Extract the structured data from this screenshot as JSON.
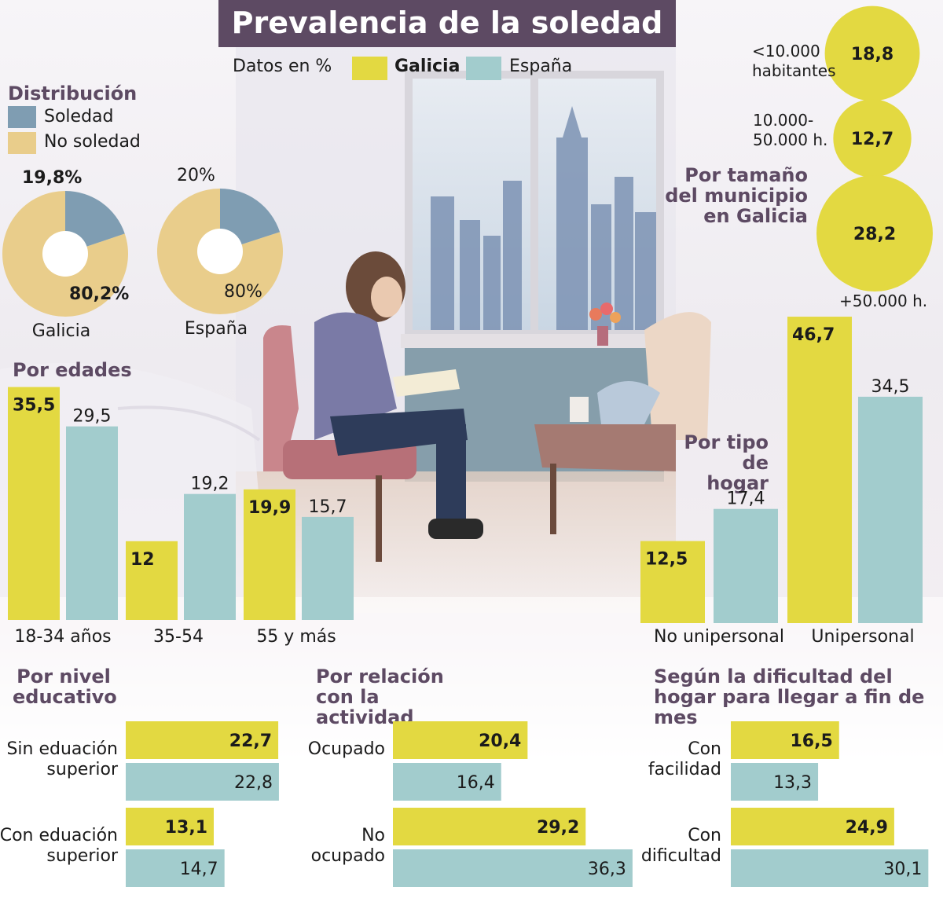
{
  "title": "Prevalencia de la soledad",
  "legend": {
    "units": "Datos en %",
    "galicia": "Galicia",
    "espana": "España",
    "galicia_color": "#e3d941",
    "espana_color": "#a2cccd"
  },
  "distribution": {
    "title": "Distribución",
    "soledad_label": "Soledad",
    "no_soledad_label": "No soledad",
    "soledad_color": "#7f9db2",
    "no_soledad_color": "#e9cd8b"
  },
  "chart_data": [
    {
      "id": "distribucion",
      "type": "pie",
      "title": "Distribución",
      "labels": [
        "Soledad",
        "No soledad"
      ],
      "charts": [
        {
          "name": "Galicia",
          "values": [
            19.8,
            80.2
          ],
          "value_labels": [
            "19,8%",
            "80,2%"
          ]
        },
        {
          "name": "España",
          "values": [
            20,
            80
          ],
          "value_labels": [
            "20%",
            "80%"
          ]
        }
      ]
    },
    {
      "id": "edades",
      "type": "bar",
      "title": "Por edades",
      "categories": [
        "18-34 años",
        "35-54",
        "55 y más"
      ],
      "series": [
        {
          "name": "Galicia",
          "values": [
            35.5,
            12,
            19.9
          ],
          "labels": [
            "35,5",
            "12",
            "19,9"
          ]
        },
        {
          "name": "España",
          "values": [
            29.5,
            19.2,
            15.7
          ],
          "labels": [
            "29,5",
            "19,2",
            "15,7"
          ]
        }
      ]
    },
    {
      "id": "hogar",
      "type": "bar",
      "title": "Por tipo de hogar",
      "categories": [
        "No unipersonal",
        "Unipersonal"
      ],
      "series": [
        {
          "name": "Galicia",
          "values": [
            12.5,
            46.7
          ],
          "labels": [
            "12,5",
            "46,7"
          ]
        },
        {
          "name": "España",
          "values": [
            17.4,
            34.5
          ],
          "labels": [
            "17,4",
            "34,5"
          ]
        }
      ]
    },
    {
      "id": "municipio",
      "type": "bubble",
      "title": "Por tamaño del municipio en Galicia",
      "categories": [
        "<10.000 habitantes",
        "10.000-50.000 h.",
        "+50.000 h."
      ],
      "values": [
        18.8,
        12.7,
        28.2
      ],
      "labels": [
        "18,8",
        "12,7",
        "28,2"
      ]
    },
    {
      "id": "educativo",
      "type": "bar-horizontal",
      "title": "Por nivel educativo",
      "categories": [
        "Sin eduación superior",
        "Con eduación superior"
      ],
      "series": [
        {
          "name": "Galicia",
          "values": [
            22.7,
            13.1
          ],
          "labels": [
            "22,7",
            "13,1"
          ]
        },
        {
          "name": "España",
          "values": [
            22.8,
            14.7
          ],
          "labels": [
            "22,8",
            "14,7"
          ]
        }
      ]
    },
    {
      "id": "actividad",
      "type": "bar-horizontal",
      "title": "Por relación con la actividad",
      "categories": [
        "Ocupado",
        "No ocupado"
      ],
      "series": [
        {
          "name": "Galicia",
          "values": [
            20.4,
            29.2
          ],
          "labels": [
            "20,4",
            "29,2"
          ]
        },
        {
          "name": "España",
          "values": [
            16.4,
            36.3
          ],
          "labels": [
            "16,4",
            "36,3"
          ]
        }
      ]
    },
    {
      "id": "dificultad",
      "type": "bar-horizontal",
      "title": "Según la dificultad del hogar para llegar a fin de mes",
      "categories": [
        "Con facilidad",
        "Con dificultad"
      ],
      "series": [
        {
          "name": "Galicia",
          "values": [
            16.5,
            24.9
          ],
          "labels": [
            "16,5",
            "24,9"
          ]
        },
        {
          "name": "España",
          "values": [
            13.3,
            30.1
          ],
          "labels": [
            "13,3",
            "30,1"
          ]
        }
      ]
    }
  ]
}
